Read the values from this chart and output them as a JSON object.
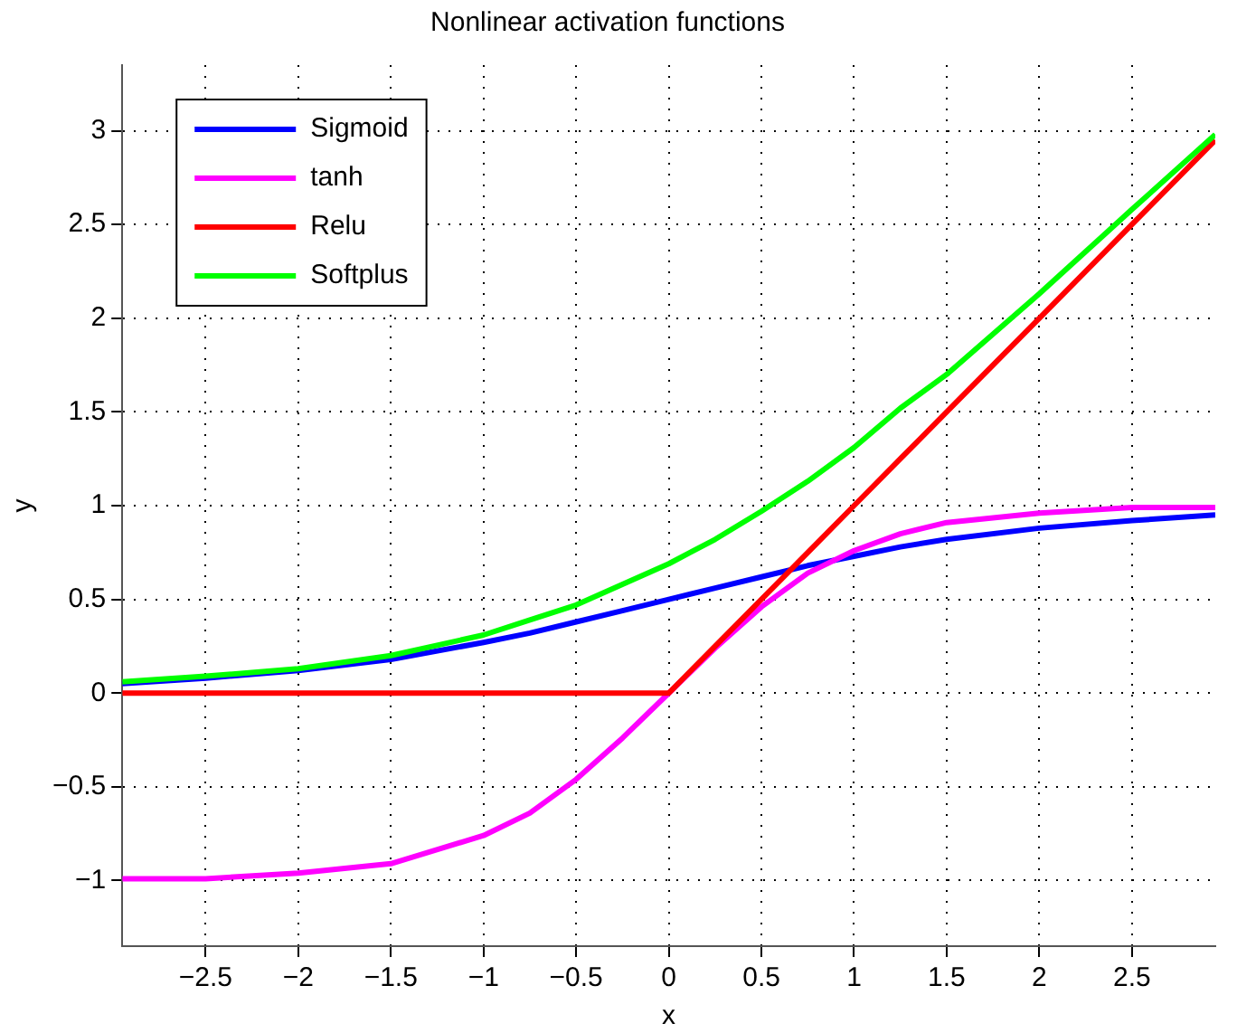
{
  "chart_data": {
    "type": "line",
    "title": "Nonlinear activation functions",
    "xlabel": "x",
    "ylabel": "y",
    "x": [
      -2.95,
      -2.5,
      -2,
      -1.5,
      -1,
      -0.75,
      -0.5,
      -0.25,
      0,
      0.25,
      0.5,
      0.75,
      1,
      1.25,
      1.5,
      2,
      2.5,
      2.95
    ],
    "series": [
      {
        "name": "Sigmoid",
        "color": "#0000ff",
        "values": [
          0.05,
          0.08,
          0.12,
          0.18,
          0.27,
          0.32,
          0.38,
          0.44,
          0.5,
          0.56,
          0.62,
          0.68,
          0.73,
          0.78,
          0.82,
          0.88,
          0.92,
          0.95
        ]
      },
      {
        "name": "tanh",
        "color": "#ff00ff",
        "values": [
          -0.99,
          -0.99,
          -0.96,
          -0.91,
          -0.76,
          -0.64,
          -0.46,
          -0.24,
          0,
          0.24,
          0.46,
          0.64,
          0.76,
          0.85,
          0.91,
          0.96,
          0.99,
          0.99
        ]
      },
      {
        "name": "Relu",
        "color": "#ff0000",
        "values": [
          0,
          0,
          0,
          0,
          0,
          0,
          0,
          0,
          0,
          0.25,
          0.5,
          0.75,
          1,
          1.25,
          1.5,
          2,
          2.5,
          2.95
        ]
      },
      {
        "name": "Softplus",
        "color": "#00ff00",
        "values": [
          0.06,
          0.09,
          0.13,
          0.2,
          0.31,
          0.39,
          0.47,
          0.58,
          0.69,
          0.82,
          0.97,
          1.13,
          1.31,
          1.52,
          1.7,
          2.13,
          2.58,
          2.98
        ]
      }
    ],
    "xlim": [
      -2.95,
      2.95
    ],
    "xticks": [
      {
        "value": -2.5,
        "label": "−2.5"
      },
      {
        "value": -2,
        "label": "−2"
      },
      {
        "value": -1.5,
        "label": "−1.5"
      },
      {
        "value": -1,
        "label": "−1"
      },
      {
        "value": -0.5,
        "label": "−0.5"
      },
      0,
      0.5,
      1,
      1.5,
      2,
      2.5
    ],
    "ylim": [
      -1.35,
      3.35
    ],
    "yticks": [
      {
        "value": -1,
        "label": "−1"
      },
      {
        "value": -0.5,
        "label": "−0.5"
      },
      0,
      0.5,
      1,
      1.5,
      2,
      2.5,
      3
    ],
    "grid": true,
    "legend": "top left",
    "marker": "none",
    "line_style": "solid"
  }
}
